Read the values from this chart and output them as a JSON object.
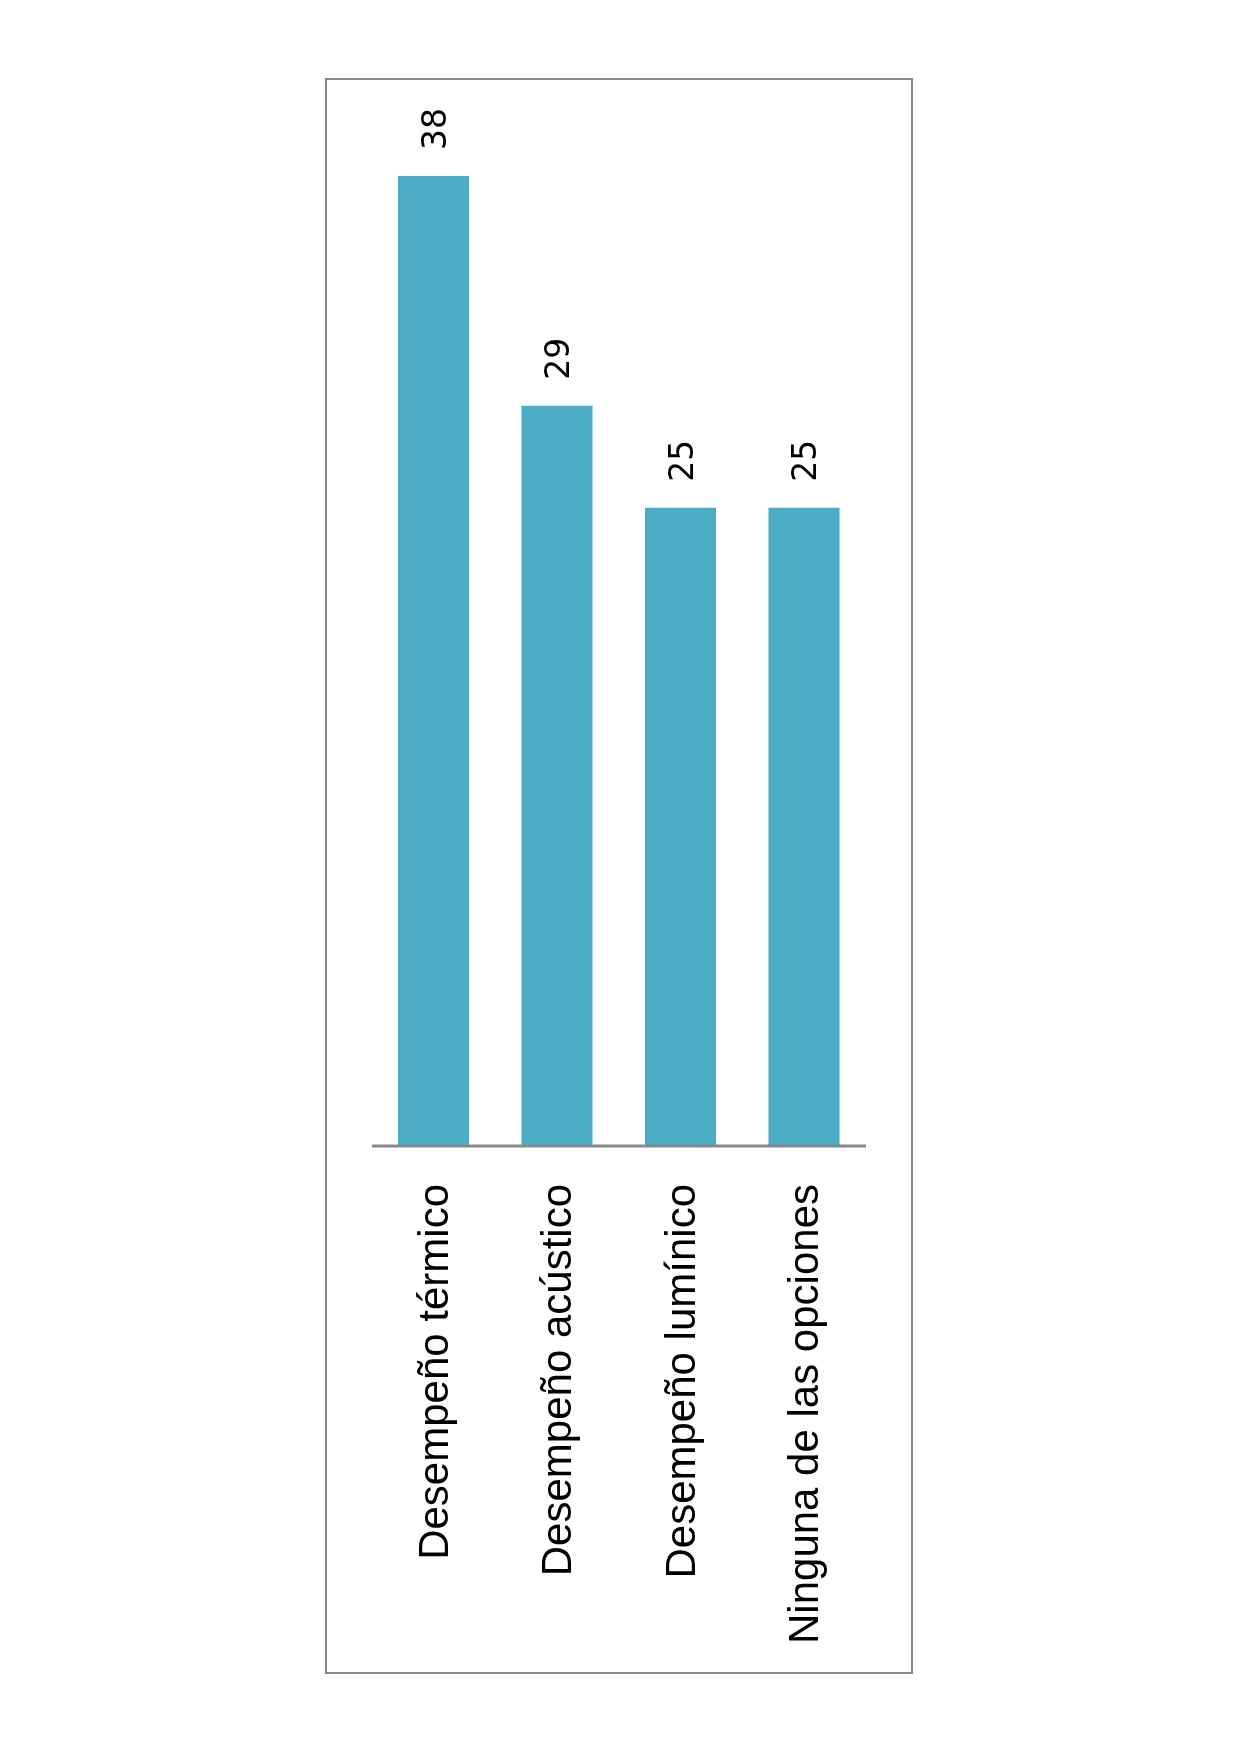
{
  "chart_data": {
    "type": "bar",
    "categories": [
      "Desempeño térmico",
      "Desempeño acústico",
      "Desempeño lumínico",
      "Ninguna de las opciones"
    ],
    "values": [
      38,
      29,
      25,
      25
    ],
    "color": "#4bacc6",
    "data_labels": true
  }
}
